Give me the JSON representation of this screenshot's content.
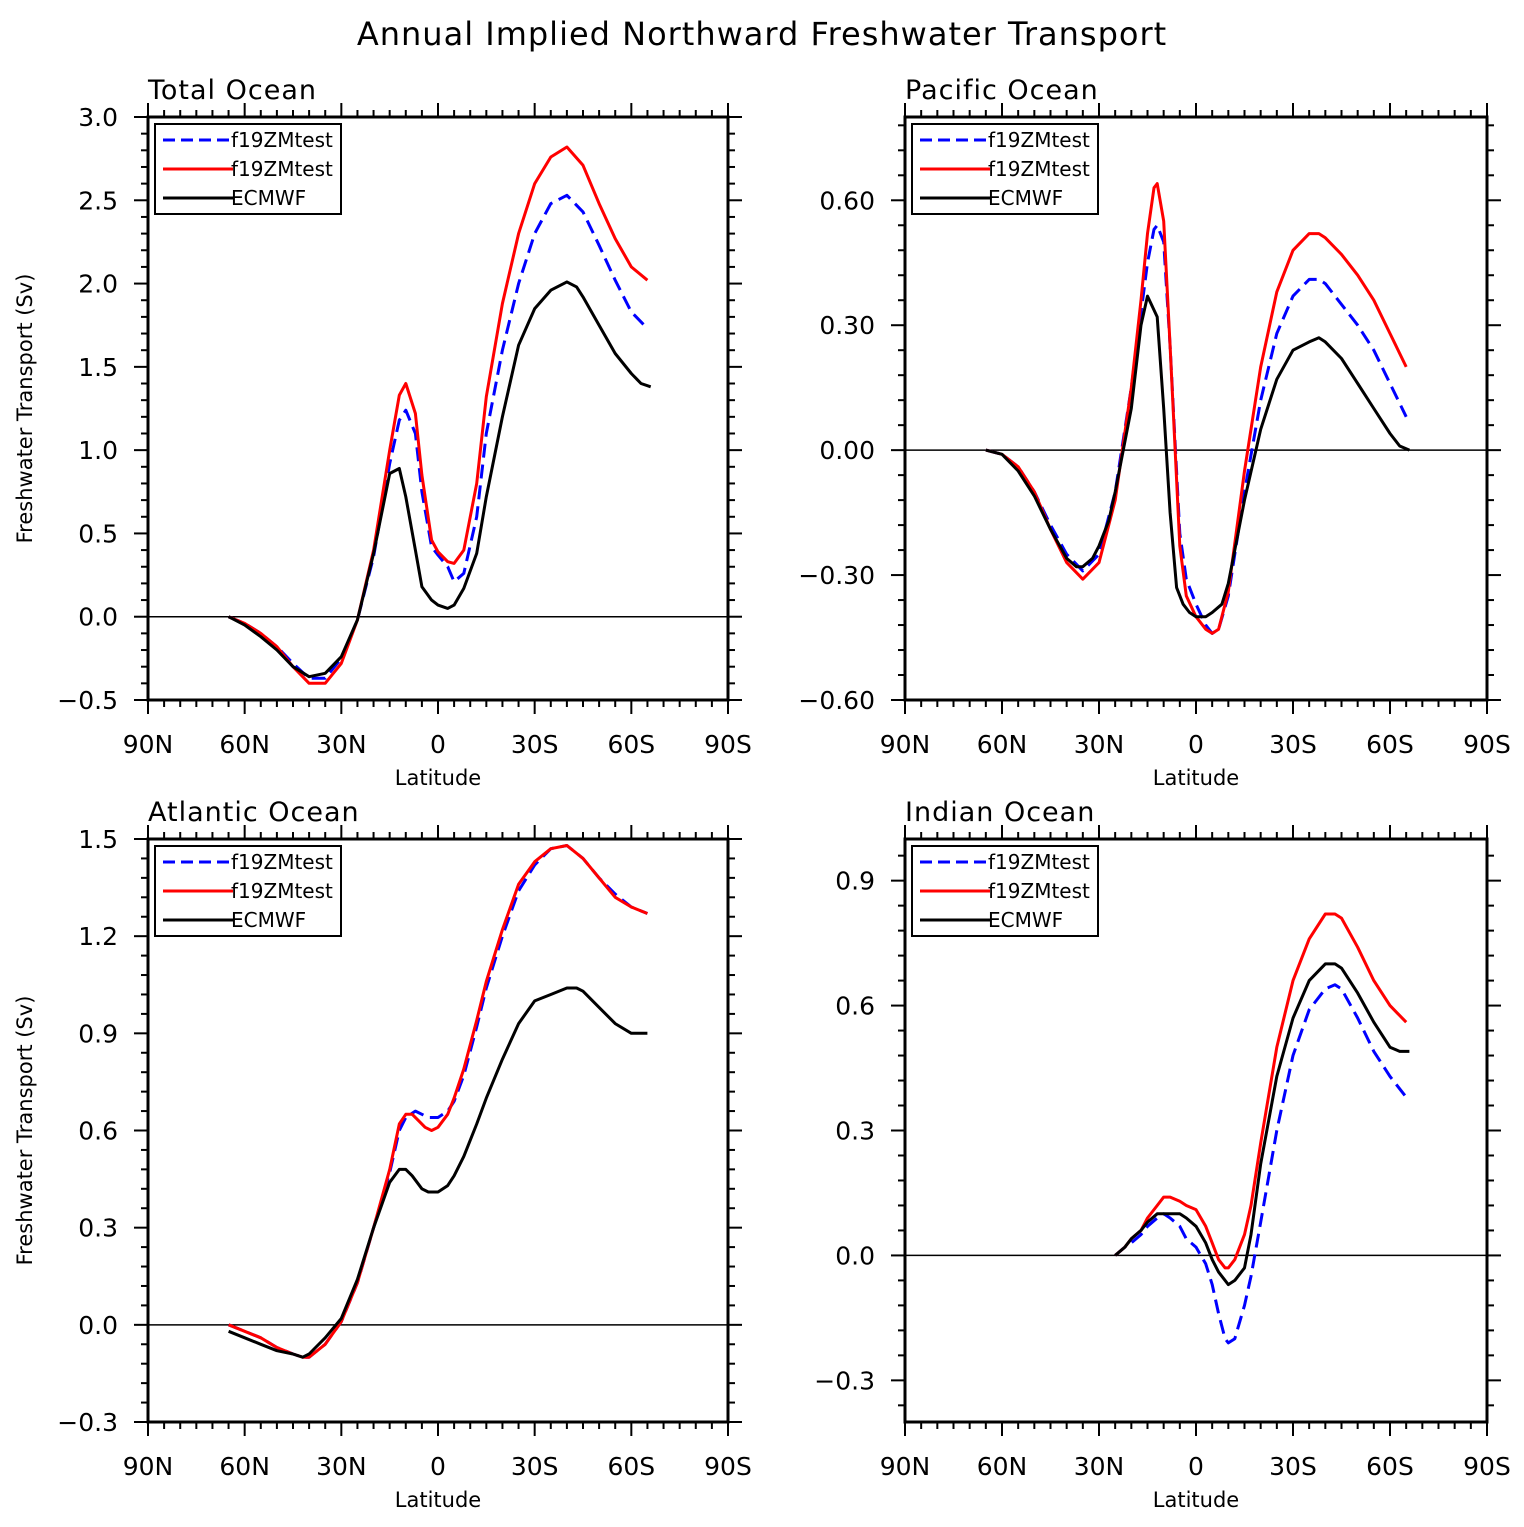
{
  "figure": {
    "title": "Annual Implied Northward Freshwater Transport"
  },
  "legend_entries": [
    {
      "label": "f19ZMtest",
      "color": "#0000ff",
      "dash": "dashed"
    },
    {
      "label": "f19ZMtest",
      "color": "#ff0000",
      "dash": "solid"
    },
    {
      "label": "ECMWF",
      "color": "#000000",
      "dash": "solid"
    }
  ],
  "x_axis": {
    "label": "Latitude",
    "range": [
      90,
      -90
    ],
    "ticks": [
      90,
      60,
      30,
      0,
      -30,
      -60,
      -90
    ],
    "tick_labels": [
      "90N",
      "60N",
      "30N",
      "0",
      "30S",
      "60S",
      "90S"
    ],
    "note": "x values are latitude in degrees, positive = N"
  },
  "chart_data": [
    {
      "type": "line",
      "title": "Total Ocean",
      "xlabel": "Latitude",
      "ylabel": "Freshwater Transport (Sv)",
      "ylim": [
        -0.5,
        3.0
      ],
      "yticks": [
        -0.5,
        0.0,
        0.5,
        1.0,
        1.5,
        2.0,
        2.5,
        3.0
      ],
      "ytick_labels": [
        "−0.5",
        "0.0",
        "0.5",
        "1.0",
        "1.5",
        "2.0",
        "2.5",
        "3.0"
      ],
      "legend": "top-left",
      "zero_line": true,
      "series": [
        {
          "name": "f19ZMtest",
          "color": "#0000ff",
          "dash": "dashed",
          "x": [
            65,
            60,
            55,
            50,
            45,
            40,
            35,
            30,
            25,
            20,
            15,
            12,
            10,
            7,
            5,
            2,
            0,
            -3,
            -5,
            -8,
            -12,
            -15,
            -20,
            -25,
            -30,
            -35,
            -40,
            -45,
            -50,
            -55,
            -60,
            -65
          ],
          "y": [
            0,
            -0.04,
            -0.1,
            -0.18,
            -0.28,
            -0.37,
            -0.37,
            -0.25,
            -0.02,
            0.36,
            0.92,
            1.18,
            1.24,
            1.1,
            0.75,
            0.42,
            0.37,
            0.3,
            0.21,
            0.26,
            0.6,
            1.1,
            1.6,
            2.0,
            2.3,
            2.48,
            2.53,
            2.43,
            2.23,
            2.02,
            1.83,
            1.73
          ]
        },
        {
          "name": "f19ZMtest",
          "color": "#ff0000",
          "dash": "solid",
          "x": [
            65,
            60,
            55,
            50,
            45,
            40,
            35,
            30,
            25,
            20,
            15,
            12,
            10,
            7,
            5,
            2,
            0,
            -3,
            -5,
            -8,
            -12,
            -15,
            -20,
            -25,
            -30,
            -35,
            -40,
            -45,
            -50,
            -55,
            -60,
            -65
          ],
          "y": [
            0,
            -0.04,
            -0.1,
            -0.18,
            -0.3,
            -0.4,
            -0.4,
            -0.28,
            -0.02,
            0.4,
            1.0,
            1.33,
            1.4,
            1.22,
            0.85,
            0.46,
            0.39,
            0.33,
            0.32,
            0.4,
            0.8,
            1.32,
            1.88,
            2.3,
            2.6,
            2.76,
            2.82,
            2.71,
            2.48,
            2.27,
            2.1,
            2.02
          ]
        },
        {
          "name": "ECMWF",
          "color": "#000000",
          "dash": "solid",
          "x": [
            65,
            60,
            55,
            50,
            45,
            40,
            35,
            30,
            25,
            20,
            15,
            12,
            10,
            7,
            5,
            2,
            0,
            -3,
            -5,
            -8,
            -12,
            -15,
            -20,
            -25,
            -30,
            -35,
            -40,
            -43,
            -45,
            -50,
            -55,
            -60,
            -63,
            -66
          ],
          "y": [
            0,
            -0.05,
            -0.12,
            -0.2,
            -0.3,
            -0.36,
            -0.34,
            -0.24,
            -0.02,
            0.38,
            0.86,
            0.89,
            0.72,
            0.4,
            0.18,
            0.1,
            0.07,
            0.05,
            0.07,
            0.17,
            0.38,
            0.72,
            1.2,
            1.63,
            1.85,
            1.96,
            2.01,
            1.98,
            1.92,
            1.75,
            1.58,
            1.46,
            1.4,
            1.38
          ]
        }
      ]
    },
    {
      "type": "line",
      "title": "Pacific Ocean",
      "xlabel": "Latitude",
      "ylabel": "",
      "ylim": [
        -0.6,
        0.8
      ],
      "yticks": [
        -0.6,
        -0.3,
        0.0,
        0.3,
        0.6
      ],
      "ytick_labels": [
        "−0.60",
        "−0.30",
        "0.00",
        "0.30",
        "0.60"
      ],
      "legend": "top-left",
      "zero_line": true,
      "series": [
        {
          "name": "f19ZMtest",
          "color": "#0000ff",
          "dash": "dashed",
          "x": [
            65,
            60,
            55,
            50,
            45,
            40,
            35,
            30,
            25,
            20,
            17,
            15,
            13,
            12,
            10,
            8,
            5,
            3,
            0,
            -3,
            -5,
            -7,
            -10,
            -15,
            -20,
            -25,
            -30,
            -35,
            -38,
            -40,
            -45,
            -50,
            -55,
            -60,
            -65
          ],
          "y": [
            0,
            -0.01,
            -0.04,
            -0.1,
            -0.18,
            -0.25,
            -0.29,
            -0.25,
            -0.1,
            0.15,
            0.33,
            0.45,
            0.53,
            0.54,
            0.5,
            0.25,
            -0.2,
            -0.31,
            -0.37,
            -0.42,
            -0.44,
            -0.43,
            -0.35,
            -0.1,
            0.12,
            0.28,
            0.37,
            0.41,
            0.41,
            0.4,
            0.35,
            0.3,
            0.24,
            0.16,
            0.08
          ]
        },
        {
          "name": "f19ZMtest",
          "color": "#ff0000",
          "dash": "solid",
          "x": [
            65,
            60,
            55,
            50,
            45,
            40,
            35,
            30,
            25,
            20,
            17,
            15,
            13,
            12,
            10,
            8,
            5,
            3,
            0,
            -3,
            -5,
            -7,
            -10,
            -15,
            -20,
            -25,
            -30,
            -35,
            -38,
            -40,
            -45,
            -50,
            -55,
            -60,
            -65
          ],
          "y": [
            0,
            -0.01,
            -0.04,
            -0.1,
            -0.19,
            -0.27,
            -0.31,
            -0.27,
            -0.12,
            0.15,
            0.36,
            0.52,
            0.63,
            0.64,
            0.55,
            0.25,
            -0.23,
            -0.35,
            -0.4,
            -0.43,
            -0.44,
            -0.43,
            -0.34,
            -0.05,
            0.2,
            0.38,
            0.48,
            0.52,
            0.52,
            0.51,
            0.47,
            0.42,
            0.36,
            0.28,
            0.2
          ]
        },
        {
          "name": "ECMWF",
          "color": "#000000",
          "dash": "solid",
          "x": [
            65,
            60,
            55,
            50,
            45,
            40,
            37,
            35,
            32,
            30,
            27,
            25,
            20,
            17,
            15,
            12,
            10,
            8,
            6,
            4,
            2,
            0,
            -3,
            -5,
            -8,
            -10,
            -15,
            -20,
            -25,
            -30,
            -35,
            -38,
            -40,
            -45,
            -50,
            -55,
            -60,
            -63,
            -66
          ],
          "y": [
            0,
            -0.01,
            -0.05,
            -0.11,
            -0.19,
            -0.26,
            -0.28,
            -0.28,
            -0.26,
            -0.23,
            -0.17,
            -0.1,
            0.1,
            0.3,
            0.37,
            0.32,
            0.1,
            -0.15,
            -0.33,
            -0.37,
            -0.39,
            -0.4,
            -0.4,
            -0.39,
            -0.37,
            -0.32,
            -0.12,
            0.05,
            0.17,
            0.24,
            0.26,
            0.27,
            0.26,
            0.22,
            0.16,
            0.1,
            0.04,
            0.01,
            0.0
          ]
        }
      ]
    },
    {
      "type": "line",
      "title": "Atlantic Ocean",
      "xlabel": "Latitude",
      "ylabel": "Freshwater Transport (Sv)",
      "ylim": [
        -0.3,
        1.5
      ],
      "yticks": [
        -0.3,
        0.0,
        0.3,
        0.6,
        0.9,
        1.2,
        1.5
      ],
      "ytick_labels": [
        "−0.3",
        "0.0",
        "0.3",
        "0.6",
        "0.9",
        "1.2",
        "1.5"
      ],
      "legend": "top-left",
      "zero_line": true,
      "series": [
        {
          "name": "f19ZMtest",
          "color": "#0000ff",
          "dash": "dashed",
          "x": [
            65,
            60,
            55,
            50,
            45,
            42,
            40,
            35,
            30,
            25,
            20,
            15,
            12,
            10,
            7,
            5,
            3,
            0,
            -3,
            -5,
            -8,
            -12,
            -15,
            -20,
            -25,
            -30,
            -35,
            -40,
            -45,
            -50,
            -55,
            -60,
            -65
          ],
          "y": [
            0,
            -0.02,
            -0.04,
            -0.07,
            -0.09,
            -0.1,
            -0.1,
            -0.06,
            0.01,
            0.13,
            0.3,
            0.47,
            0.6,
            0.64,
            0.66,
            0.65,
            0.64,
            0.64,
            0.66,
            0.69,
            0.77,
            0.92,
            1.04,
            1.2,
            1.34,
            1.42,
            1.47,
            1.48,
            1.44,
            1.38,
            1.33,
            1.29,
            1.27
          ]
        },
        {
          "name": "f19ZMtest",
          "color": "#ff0000",
          "dash": "solid",
          "x": [
            65,
            60,
            55,
            50,
            45,
            42,
            40,
            35,
            30,
            25,
            20,
            15,
            12,
            10,
            8,
            6,
            4,
            2,
            0,
            -3,
            -5,
            -8,
            -12,
            -15,
            -20,
            -25,
            -30,
            -35,
            -40,
            -45,
            -50,
            -55,
            -60,
            -65
          ],
          "y": [
            0,
            -0.02,
            -0.04,
            -0.07,
            -0.09,
            -0.1,
            -0.1,
            -0.06,
            0.01,
            0.13,
            0.3,
            0.48,
            0.62,
            0.65,
            0.65,
            0.63,
            0.61,
            0.6,
            0.61,
            0.65,
            0.7,
            0.79,
            0.94,
            1.06,
            1.22,
            1.36,
            1.43,
            1.47,
            1.48,
            1.44,
            1.38,
            1.32,
            1.29,
            1.27
          ]
        },
        {
          "name": "ECMWF",
          "color": "#000000",
          "dash": "solid",
          "x": [
            65,
            60,
            55,
            50,
            45,
            42,
            40,
            35,
            30,
            25,
            20,
            15,
            12,
            10,
            8,
            5,
            3,
            0,
            -3,
            -5,
            -8,
            -12,
            -15,
            -20,
            -25,
            -30,
            -35,
            -40,
            -43,
            -45,
            -50,
            -55,
            -60,
            -65
          ],
          "y": [
            -0.02,
            -0.04,
            -0.06,
            -0.08,
            -0.09,
            -0.1,
            -0.09,
            -0.04,
            0.02,
            0.14,
            0.3,
            0.44,
            0.48,
            0.48,
            0.46,
            0.42,
            0.41,
            0.41,
            0.43,
            0.46,
            0.52,
            0.62,
            0.7,
            0.82,
            0.93,
            1.0,
            1.02,
            1.04,
            1.04,
            1.03,
            0.98,
            0.93,
            0.9,
            0.9
          ]
        }
      ]
    },
    {
      "type": "line",
      "title": "Indian Ocean",
      "xlabel": "Latitude",
      "ylabel": "",
      "ylim": [
        -0.4,
        1.0
      ],
      "yticks": [
        -0.3,
        0.0,
        0.3,
        0.6,
        0.9
      ],
      "ytick_labels": [
        "−0.3",
        "0.0",
        "0.3",
        "0.6",
        "0.9"
      ],
      "legend": "top-left",
      "zero_line": true,
      "series": [
        {
          "name": "f19ZMtest",
          "color": "#0000ff",
          "dash": "dashed",
          "x": [
            25,
            22,
            20,
            17,
            15,
            12,
            10,
            8,
            5,
            3,
            0,
            -3,
            -5,
            -7,
            -9,
            -10,
            -12,
            -15,
            -17,
            -20,
            -25,
            -30,
            -35,
            -40,
            -43,
            -45,
            -50,
            -55,
            -60,
            -65
          ],
          "y": [
            0,
            0.02,
            0.03,
            0.05,
            0.07,
            0.09,
            0.1,
            0.09,
            0.07,
            0.04,
            0.02,
            -0.02,
            -0.07,
            -0.14,
            -0.2,
            -0.21,
            -0.2,
            -0.12,
            -0.05,
            0.08,
            0.3,
            0.48,
            0.59,
            0.64,
            0.65,
            0.64,
            0.57,
            0.49,
            0.43,
            0.38
          ]
        },
        {
          "name": "f19ZMtest",
          "color": "#ff0000",
          "dash": "solid",
          "x": [
            25,
            22,
            20,
            17,
            15,
            12,
            10,
            8,
            5,
            3,
            0,
            -3,
            -5,
            -7,
            -9,
            -10,
            -12,
            -15,
            -17,
            -20,
            -25,
            -30,
            -35,
            -40,
            -43,
            -45,
            -50,
            -55,
            -60,
            -65
          ],
          "y": [
            0,
            0.02,
            0.04,
            0.06,
            0.09,
            0.12,
            0.14,
            0.14,
            0.13,
            0.12,
            0.11,
            0.07,
            0.03,
            -0.01,
            -0.03,
            -0.03,
            -0.01,
            0.05,
            0.12,
            0.27,
            0.5,
            0.66,
            0.76,
            0.82,
            0.82,
            0.81,
            0.74,
            0.66,
            0.6,
            0.56
          ]
        },
        {
          "name": "ECMWF",
          "color": "#000000",
          "dash": "solid",
          "x": [
            25,
            22,
            20,
            17,
            15,
            12,
            10,
            8,
            5,
            3,
            0,
            -3,
            -5,
            -7,
            -9,
            -10,
            -12,
            -15,
            -17,
            -20,
            -25,
            -30,
            -35,
            -40,
            -43,
            -45,
            -50,
            -55,
            -60,
            -63,
            -66
          ],
          "y": [
            0,
            0.02,
            0.04,
            0.06,
            0.08,
            0.1,
            0.1,
            0.1,
            0.1,
            0.09,
            0.07,
            0.03,
            -0.01,
            -0.04,
            -0.06,
            -0.07,
            -0.06,
            -0.03,
            0.05,
            0.22,
            0.43,
            0.57,
            0.66,
            0.7,
            0.7,
            0.69,
            0.63,
            0.56,
            0.5,
            0.49,
            0.49
          ]
        }
      ]
    }
  ]
}
